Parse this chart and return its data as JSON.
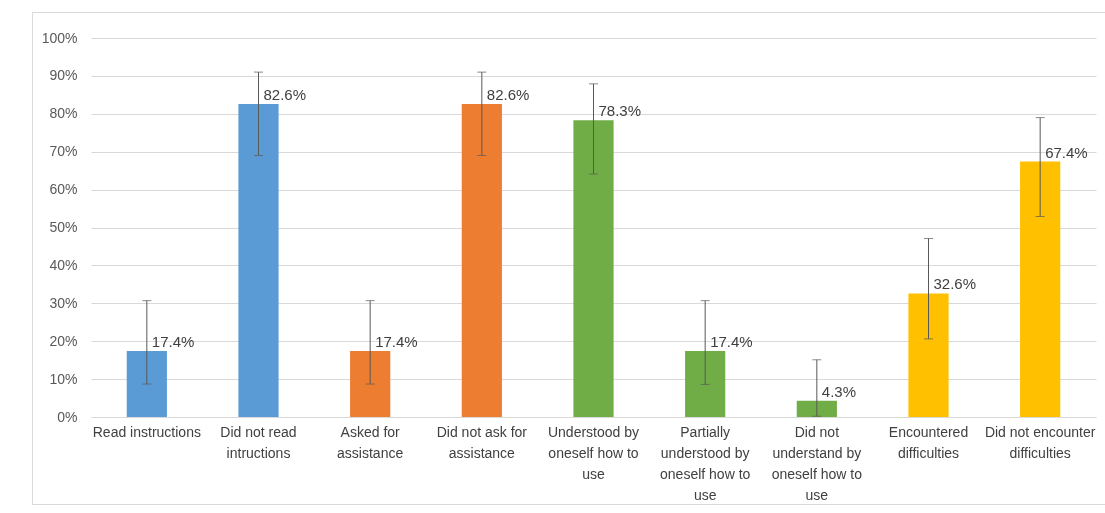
{
  "chart_data": {
    "type": "bar",
    "categories": [
      "Read instructions",
      "Did not read intructions",
      "Asked for assistance",
      "Did not ask for assistance",
      "Understood by oneself how to use",
      "Partially understood by oneself how to use",
      "Did not understand by oneself how to use",
      "Encountered difficulties",
      "Did not encounter difficulties"
    ],
    "values": [
      17.4,
      82.6,
      17.4,
      82.6,
      78.3,
      17.4,
      4.3,
      32.6,
      67.4
    ],
    "colors": [
      "#5b9bd5",
      "#5b9bd5",
      "#ed7d31",
      "#ed7d31",
      "#70ad47",
      "#70ad47",
      "#70ad47",
      "#ffc000",
      "#ffc000"
    ],
    "errors": [
      [
        8.7,
        30.7
      ],
      [
        69.0,
        91.0
      ],
      [
        8.7,
        30.7
      ],
      [
        69.0,
        91.0
      ],
      [
        64.1,
        87.9
      ],
      [
        8.6,
        30.7
      ],
      [
        0.2,
        15.1
      ],
      [
        20.6,
        47.1
      ],
      [
        52.9,
        79.0
      ]
    ],
    "ylim": [
      0,
      100
    ],
    "yticks": [
      {
        "value": 0,
        "label": "0%"
      },
      {
        "value": 10,
        "label": "10%"
      },
      {
        "value": 20,
        "label": "20%"
      },
      {
        "value": 30,
        "label": "30%"
      },
      {
        "value": 40,
        "label": "40%"
      },
      {
        "value": 50,
        "label": "50%"
      },
      {
        "value": 60,
        "label": "60%"
      },
      {
        "value": 70,
        "label": "70%"
      },
      {
        "value": 80,
        "label": "80%"
      },
      {
        "value": 90,
        "label": "90%"
      },
      {
        "value": 100,
        "label": "100%"
      }
    ],
    "value_labels": [
      "17.4%",
      "82.6%",
      "17.4%",
      "82.6%",
      "78.3%",
      "17.4%",
      "4.3%",
      "32.6%",
      "67.4%"
    ],
    "grid": "y"
  }
}
